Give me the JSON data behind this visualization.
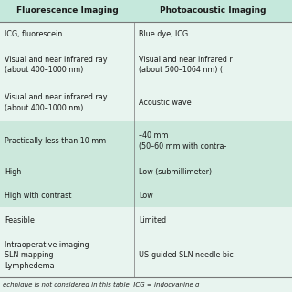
{
  "bg_color": "#e8f4ef",
  "header_bg": "#c5e8dc",
  "col1_header": "Fluorescence Imaging",
  "col2_header": "Photoacoustic Imaging",
  "rows": [
    [
      "ICG, fluorescein",
      "Blue dye, ICG"
    ],
    [
      "Visual and near infrared ray\n(about 400–1000 nm)",
      "Visual and near infrared r\n(about 500–1064 nm) ("
    ],
    [
      "Visual and near infrared ray\n(about 400–1000 nm)",
      "Acoustic wave"
    ],
    [
      "Practically less than 10 mm",
      "–40 mm\n(50–60 mm with contra-"
    ],
    [
      "High",
      "Low (submillimeter)"
    ],
    [
      "High with contrast",
      "Low"
    ],
    [
      "Feasible",
      "Limited"
    ],
    [
      "Intraoperative imaging\nSLN mapping\nLymphedema",
      "US-guided SLN needle bic"
    ]
  ],
  "row_shading": [
    false,
    false,
    false,
    true,
    true,
    true,
    false,
    false
  ],
  "footer": "echnique is not considered in this table. ICG = indocyanine g",
  "font_size": 5.8,
  "header_font_size": 6.5,
  "footer_font_size": 5.0,
  "text_color": "#1a1a1a",
  "header_text_color": "#1a1a1a",
  "shaded_color": "#cce8dc",
  "unshaded_color": "#e8f4ef",
  "line_color": "#777777",
  "col_split": 0.46
}
